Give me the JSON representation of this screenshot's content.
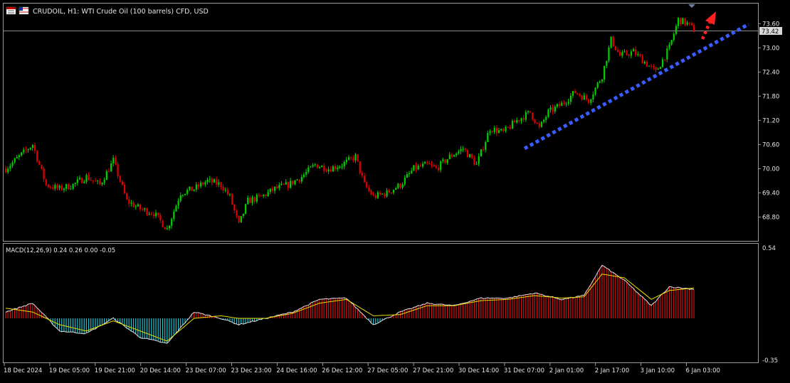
{
  "header": {
    "symbol_info": "CRUDOIL, H1:  WTI Crude Oil (100 barrels) CFD, USD",
    "icon_names": [
      "chart-window-icon",
      "flag-icon"
    ]
  },
  "main_chart": {
    "current_price_label": "73.42",
    "price_ticks": [
      "73.60",
      "73.00",
      "72.40",
      "71.80",
      "71.20",
      "70.60",
      "70.00",
      "69.40",
      "68.80"
    ]
  },
  "indicator": {
    "label": "MACD(12,26,9) 0.24 0.26 0.00 -0.05",
    "scale_top": "0.54",
    "scale_bottom": "-0.35"
  },
  "time_axis": {
    "labels": [
      "18 Dec 2024",
      "19 Dec 05:00",
      "19 Dec 21:00",
      "20 Dec 14:00",
      "23 Dec 07:00",
      "23 Dec 23:00",
      "24 Dec 16:00",
      "26 Dec 12:00",
      "27 Dec 05:00",
      "27 Dec 21:00",
      "30 Dec 14:00",
      "31 Dec 07:00",
      "2 Jan 01:00",
      "2 Jan 17:00",
      "3 Jan 10:00",
      "6 Jan 03:00"
    ]
  },
  "colors": {
    "background": "#000000",
    "bull": "#00d000",
    "bear": "#e00000",
    "trendline": "#3a5bff",
    "arrow": "#ff2020",
    "macd_line": "#e0e0e0",
    "signal_line": "#e8e000",
    "hist_pos": "#d01010",
    "hist_neg": "#20c0d0",
    "grid_border": "#9a9a9a"
  },
  "chart_data": {
    "type": "candlestick",
    "price_axis_range": [
      68.5,
      73.9
    ],
    "current_price": 73.42,
    "trend_line": {
      "start": {
        "time": "31 Dec 07:00",
        "price": 70.5
      },
      "end": {
        "time": "6 Jan 03:00",
        "price": 73.6
      }
    },
    "close_path": [
      [
        0,
        70.0
      ],
      [
        6,
        70.3
      ],
      [
        12,
        70.6
      ],
      [
        18,
        69.6
      ],
      [
        24,
        69.5
      ],
      [
        30,
        69.6
      ],
      [
        36,
        69.8
      ],
      [
        42,
        69.6
      ],
      [
        48,
        70.2
      ],
      [
        54,
        69.2
      ],
      [
        60,
        69.0
      ],
      [
        66,
        68.9
      ],
      [
        72,
        68.5
      ],
      [
        78,
        69.4
      ],
      [
        84,
        69.5
      ],
      [
        90,
        69.7
      ],
      [
        96,
        69.6
      ],
      [
        100,
        69.3
      ],
      [
        104,
        68.6
      ],
      [
        108,
        69.2
      ],
      [
        114,
        69.3
      ],
      [
        120,
        69.5
      ],
      [
        126,
        69.6
      ],
      [
        132,
        69.8
      ],
      [
        138,
        70.1
      ],
      [
        144,
        70.0
      ],
      [
        150,
        70.1
      ],
      [
        156,
        70.3
      ],
      [
        160,
        69.6
      ],
      [
        164,
        69.3
      ],
      [
        170,
        69.4
      ],
      [
        176,
        69.6
      ],
      [
        182,
        70.0
      ],
      [
        188,
        70.1
      ],
      [
        192,
        70.0
      ],
      [
        198,
        70.3
      ],
      [
        204,
        70.5
      ],
      [
        210,
        70.1
      ],
      [
        216,
        71.0
      ],
      [
        222,
        70.9
      ],
      [
        228,
        71.2
      ],
      [
        234,
        71.4
      ],
      [
        238,
        71.0
      ],
      [
        242,
        71.4
      ],
      [
        248,
        71.6
      ],
      [
        254,
        71.9
      ],
      [
        260,
        71.7
      ],
      [
        266,
        72.3
      ],
      [
        270,
        73.2
      ],
      [
        274,
        72.8
      ],
      [
        280,
        72.9
      ],
      [
        286,
        72.6
      ],
      [
        290,
        72.4
      ],
      [
        296,
        73.0
      ],
      [
        300,
        73.7
      ],
      [
        304,
        73.6
      ],
      [
        307,
        73.45
      ]
    ],
    "macd_path": [
      [
        0,
        0.05
      ],
      [
        12,
        0.12
      ],
      [
        24,
        -0.1
      ],
      [
        36,
        -0.12
      ],
      [
        48,
        0.0
      ],
      [
        60,
        -0.15
      ],
      [
        72,
        -0.2
      ],
      [
        84,
        0.05
      ],
      [
        96,
        0.0
      ],
      [
        104,
        -0.05
      ],
      [
        116,
        0.0
      ],
      [
        128,
        0.05
      ],
      [
        140,
        0.15
      ],
      [
        152,
        0.16
      ],
      [
        164,
        -0.05
      ],
      [
        176,
        0.05
      ],
      [
        188,
        0.12
      ],
      [
        200,
        0.1
      ],
      [
        212,
        0.16
      ],
      [
        224,
        0.16
      ],
      [
        236,
        0.2
      ],
      [
        248,
        0.15
      ],
      [
        258,
        0.18
      ],
      [
        266,
        0.42
      ],
      [
        276,
        0.3
      ],
      [
        288,
        0.1
      ],
      [
        296,
        0.25
      ],
      [
        307,
        0.23
      ]
    ],
    "signal_path": [
      [
        0,
        0.08
      ],
      [
        12,
        0.05
      ],
      [
        24,
        -0.05
      ],
      [
        36,
        -0.1
      ],
      [
        48,
        -0.02
      ],
      [
        60,
        -0.1
      ],
      [
        72,
        -0.18
      ],
      [
        84,
        0.0
      ],
      [
        96,
        0.02
      ],
      [
        104,
        0.0
      ],
      [
        116,
        0.0
      ],
      [
        128,
        0.04
      ],
      [
        140,
        0.12
      ],
      [
        152,
        0.15
      ],
      [
        164,
        0.02
      ],
      [
        176,
        0.03
      ],
      [
        188,
        0.1
      ],
      [
        200,
        0.1
      ],
      [
        212,
        0.14
      ],
      [
        224,
        0.15
      ],
      [
        236,
        0.18
      ],
      [
        248,
        0.16
      ],
      [
        258,
        0.17
      ],
      [
        266,
        0.35
      ],
      [
        276,
        0.32
      ],
      [
        288,
        0.15
      ],
      [
        296,
        0.22
      ],
      [
        307,
        0.24
      ]
    ]
  }
}
